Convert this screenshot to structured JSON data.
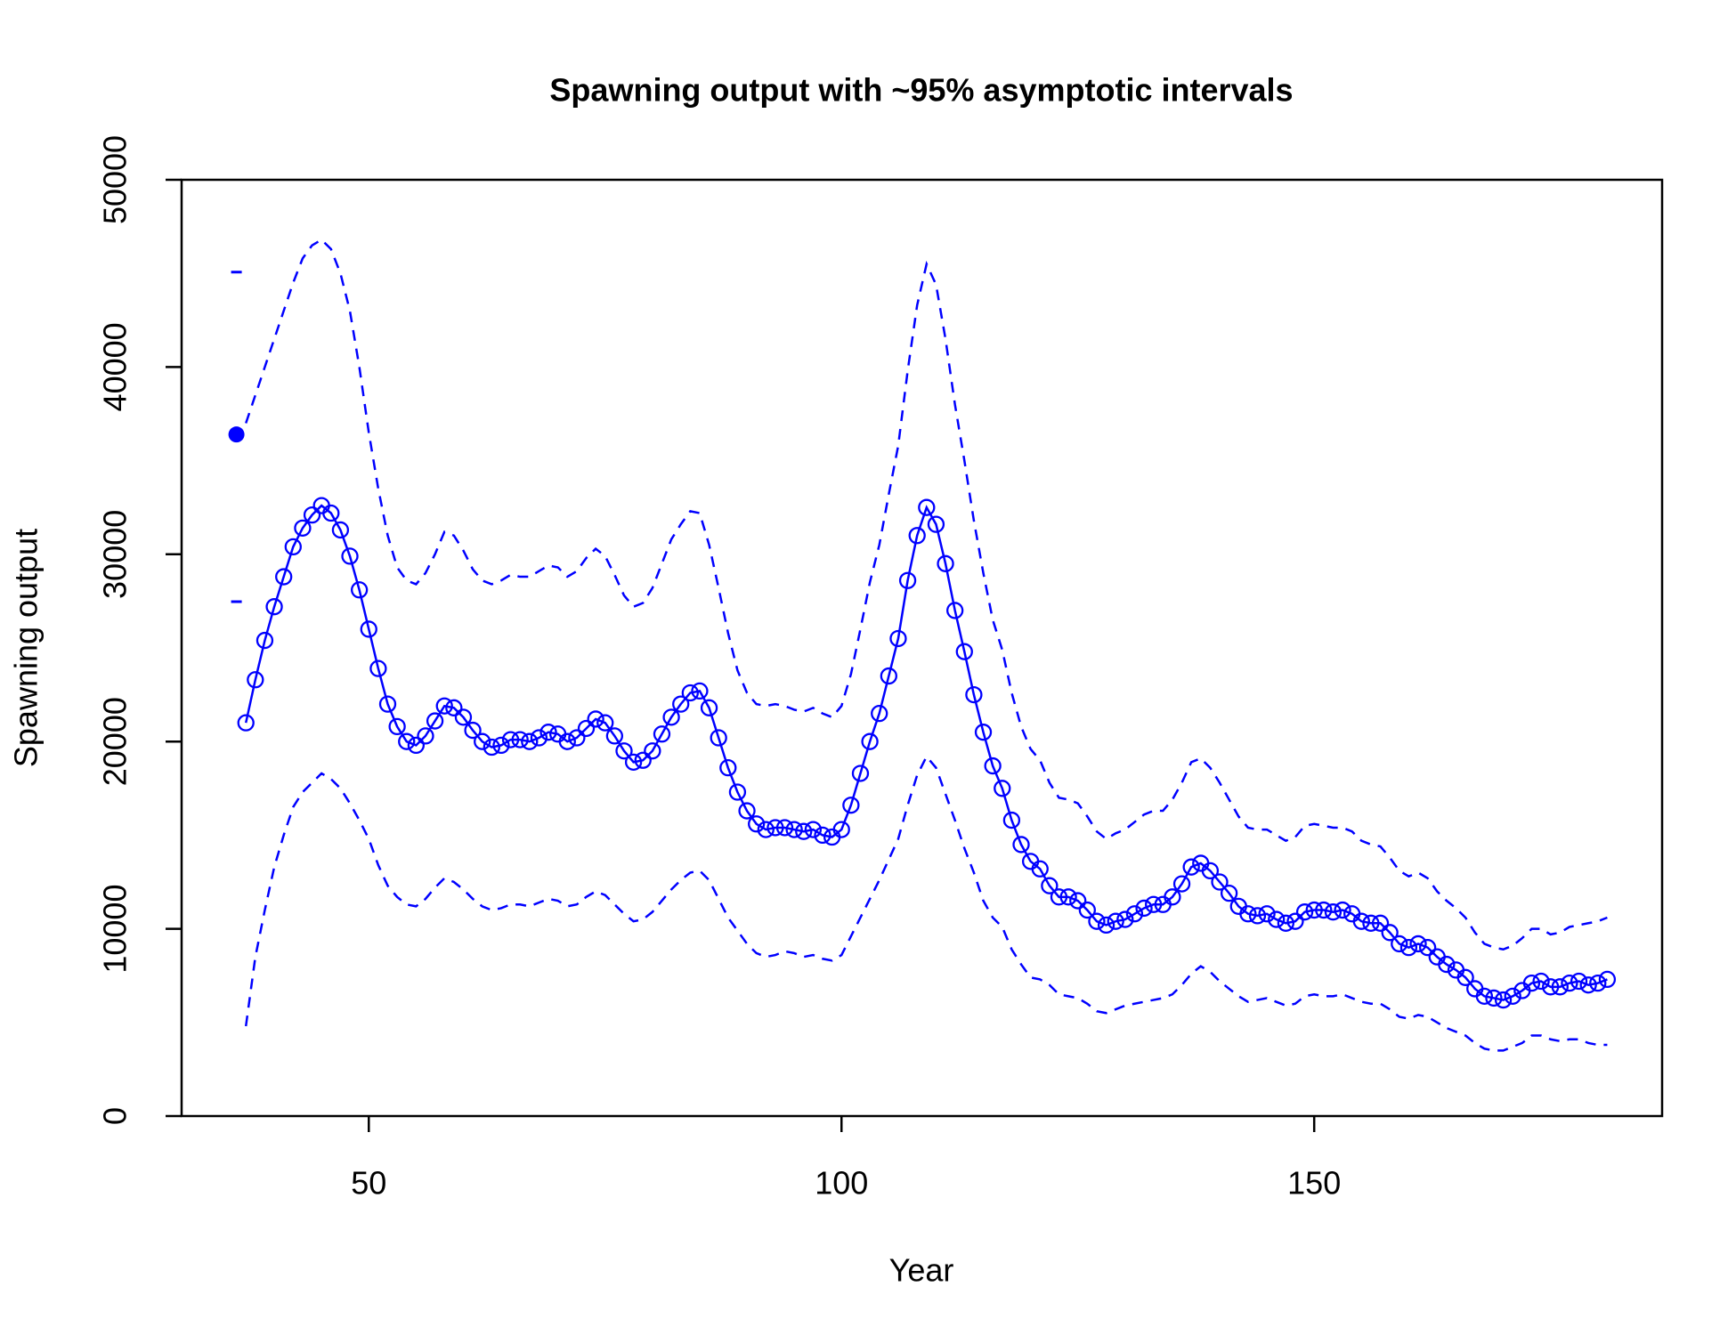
{
  "chart_data": {
    "type": "line",
    "title": "Spawning output with ~95% asymptotic intervals",
    "xlabel": "Year",
    "ylabel": "Spawning output",
    "xlim": [
      30.2,
      186.8
    ],
    "ylim": [
      0,
      50000
    ],
    "xticks": [
      50,
      100,
      150
    ],
    "yticks": [
      0,
      10000,
      20000,
      30000,
      40000,
      50000
    ],
    "grid": false,
    "color": "#0000ff",
    "virgin": {
      "x": 36,
      "value": 36400,
      "lower": 27470,
      "upper": 45070
    },
    "x": [
      37,
      38,
      39,
      40,
      41,
      42,
      43,
      44,
      45,
      46,
      47,
      48,
      49,
      50,
      51,
      52,
      53,
      54,
      55,
      56,
      57,
      58,
      59,
      60,
      61,
      62,
      63,
      64,
      65,
      66,
      67,
      68,
      69,
      70,
      71,
      72,
      73,
      74,
      75,
      76,
      77,
      78,
      79,
      80,
      81,
      82,
      83,
      84,
      85,
      86,
      87,
      88,
      89,
      90,
      91,
      92,
      93,
      94,
      95,
      96,
      97,
      98,
      99,
      100,
      101,
      102,
      103,
      104,
      105,
      106,
      107,
      108,
      109,
      110,
      111,
      112,
      113,
      114,
      115,
      116,
      117,
      118,
      119,
      120,
      121,
      122,
      123,
      124,
      125,
      126,
      127,
      128,
      129,
      130,
      131,
      132,
      133,
      134,
      135,
      136,
      137,
      138,
      139,
      140,
      141,
      142,
      143,
      144,
      145,
      146,
      147,
      148,
      149,
      150,
      151,
      152,
      153,
      154,
      155,
      156,
      157,
      158,
      159,
      160,
      161,
      162,
      163,
      164,
      165,
      166,
      167,
      168,
      169,
      170,
      171,
      172,
      173,
      174,
      175,
      176,
      177,
      178,
      179,
      180,
      181
    ],
    "series": [
      {
        "role": "estimate",
        "linestyle": "solid",
        "marker": "open-circle",
        "color": "#0000ff",
        "values": [
          21000,
          23300,
          25400,
          27200,
          28800,
          30400,
          31400,
          32100,
          32600,
          32200,
          31300,
          29900,
          28100,
          26000,
          23900,
          22000,
          20800,
          20000,
          19800,
          20300,
          21100,
          21900,
          21800,
          21300,
          20600,
          20000,
          19700,
          19800,
          20100,
          20100,
          20000,
          20200,
          20500,
          20400,
          20000,
          20200,
          20700,
          21200,
          21000,
          20300,
          19500,
          18900,
          19000,
          19500,
          20400,
          21300,
          22000,
          22600,
          22700,
          21800,
          20200,
          18600,
          17300,
          16300,
          15600,
          15300,
          15400,
          15400,
          15300,
          15200,
          15300,
          15000,
          14900,
          15300,
          16600,
          18300,
          20000,
          21500,
          23500,
          25500,
          28600,
          31000,
          32500,
          31600,
          29500,
          27000,
          24800,
          22500,
          20500,
          18700,
          17500,
          15800,
          14500,
          13600,
          13200,
          12300,
          11700,
          11700,
          11500,
          11000,
          10400,
          10200,
          10400,
          10500,
          10800,
          11100,
          11300,
          11300,
          11700,
          12400,
          13300,
          13500,
          13100,
          12500,
          11900,
          11200,
          10800,
          10700,
          10800,
          10500,
          10300,
          10400,
          10900,
          11000,
          11000,
          10900,
          11000,
          10800,
          10400,
          10300,
          10300,
          9800,
          9200,
          9000,
          9200,
          9000,
          8500,
          8100,
          7800,
          7400,
          6800,
          6400,
          6300,
          6200,
          6400,
          6700,
          7100,
          7200,
          6900,
          6900,
          7100,
          7200,
          7000,
          7100,
          7300
        ]
      },
      {
        "role": "upper",
        "linestyle": "dashed",
        "color": "#0000ff",
        "values": [
          37000,
          38500,
          40000,
          41500,
          43000,
          44500,
          45800,
          46500,
          46800,
          46300,
          45000,
          43000,
          40000,
          36500,
          33500,
          31000,
          29300,
          28600,
          28400,
          29000,
          30000,
          31200,
          31000,
          30200,
          29200,
          28600,
          28400,
          28600,
          28900,
          28800,
          28800,
          29100,
          29400,
          29300,
          28800,
          29100,
          29800,
          30300,
          29900,
          28900,
          27800,
          27200,
          27400,
          28200,
          29500,
          30800,
          31600,
          32300,
          32200,
          30500,
          28200,
          25800,
          23800,
          22600,
          22000,
          21900,
          22000,
          21900,
          21700,
          21600,
          21800,
          21500,
          21300,
          21900,
          23600,
          26000,
          28500,
          30500,
          33200,
          35800,
          39800,
          43300,
          45500,
          44400,
          41500,
          38000,
          35000,
          31800,
          29000,
          26500,
          24900,
          22600,
          20800,
          19600,
          19000,
          17800,
          17000,
          16900,
          16700,
          16000,
          15200,
          14800,
          15100,
          15300,
          15700,
          16100,
          16300,
          16300,
          16900,
          17800,
          18900,
          19100,
          18600,
          17800,
          16900,
          16000,
          15400,
          15300,
          15300,
          15000,
          14700,
          14900,
          15500,
          15600,
          15500,
          15400,
          15400,
          15200,
          14700,
          14500,
          14400,
          13800,
          13100,
          12800,
          13000,
          12700,
          12000,
          11500,
          11100,
          10600,
          9800,
          9200,
          9000,
          8900,
          9100,
          9500,
          10000,
          10000,
          9700,
          9800,
          10100,
          10200,
          10300,
          10400,
          10600
        ]
      },
      {
        "role": "lower",
        "linestyle": "dashed",
        "color": "#0000ff",
        "values": [
          4800,
          8500,
          11000,
          13300,
          15000,
          16500,
          17300,
          17800,
          18300,
          18000,
          17500,
          16700,
          15800,
          14800,
          13400,
          12300,
          11700,
          11300,
          11200,
          11600,
          12200,
          12700,
          12500,
          12100,
          11600,
          11200,
          11000,
          11100,
          11300,
          11300,
          11200,
          11400,
          11600,
          11500,
          11200,
          11300,
          11700,
          12000,
          11800,
          11300,
          10800,
          10400,
          10500,
          10900,
          11500,
          12100,
          12600,
          13000,
          13100,
          12600,
          11600,
          10600,
          9900,
          9200,
          8700,
          8500,
          8600,
          8800,
          8700,
          8500,
          8600,
          8400,
          8300,
          8600,
          9600,
          10600,
          11600,
          12600,
          13700,
          14800,
          16600,
          18200,
          19200,
          18600,
          17200,
          15800,
          14300,
          13000,
          11500,
          10600,
          10100,
          8900,
          8100,
          7400,
          7300,
          7000,
          6500,
          6400,
          6300,
          6000,
          5600,
          5500,
          5700,
          5900,
          6000,
          6100,
          6200,
          6300,
          6500,
          7000,
          7600,
          8000,
          7700,
          7200,
          6800,
          6400,
          6100,
          6200,
          6300,
          6100,
          5900,
          6000,
          6400,
          6500,
          6400,
          6400,
          6500,
          6300,
          6100,
          6000,
          6000,
          5700,
          5300,
          5200,
          5400,
          5300,
          5000,
          4700,
          4500,
          4300,
          3900,
          3600,
          3500,
          3500,
          3700,
          3900,
          4300,
          4300,
          4100,
          4000,
          4100,
          4100,
          3900,
          3800,
          3800
        ]
      }
    ]
  }
}
